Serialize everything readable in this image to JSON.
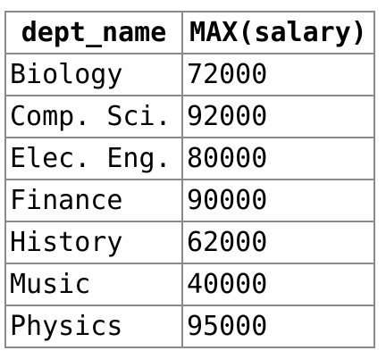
{
  "table": {
    "columns": [
      "dept_name",
      "MAX(salary)"
    ],
    "rows": [
      [
        "Biology",
        "72000"
      ],
      [
        "Comp. Sci.",
        "92000"
      ],
      [
        "Elec. Eng.",
        "80000"
      ],
      [
        "Finance",
        "90000"
      ],
      [
        "History",
        "62000"
      ],
      [
        "Music",
        "40000"
      ],
      [
        "Physics",
        "95000"
      ]
    ]
  }
}
